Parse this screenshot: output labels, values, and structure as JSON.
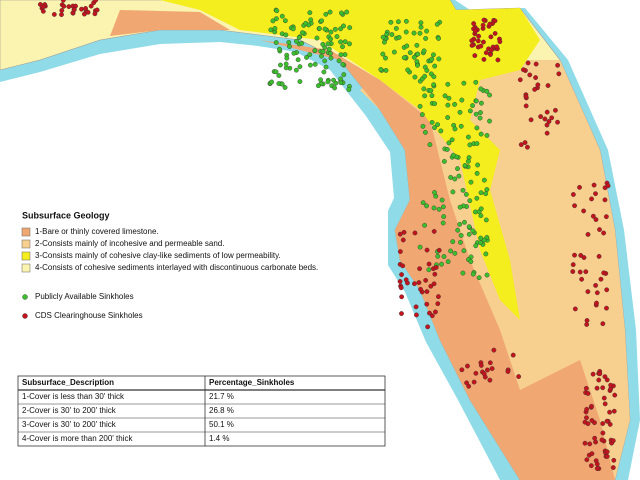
{
  "legend": {
    "title": "Subsurface Geology",
    "items": [
      {
        "label": "1-Bare or thinly covered limestone.",
        "color": "#f0a772"
      },
      {
        "label": "2-Consists mainly of incohesive and permeable sand.",
        "color": "#f7cf8f"
      },
      {
        "label": "3-Consists mainly of cohesive clay-like sediments of low permeability.",
        "color": "#f4ee1e"
      },
      {
        "label": "4-Consists of cohesive sediments interlayed with discontinuous carbonate beds.",
        "color": "#fbf3b0"
      }
    ],
    "points": [
      {
        "label": "Publicly Available Sinkholes",
        "color": "#3cbf2c"
      },
      {
        "label": "CDS Clearinghouse Sinkholes",
        "color": "#c3131c"
      }
    ]
  },
  "table": {
    "header": [
      "Subsurface_Description",
      "Percentage_Sinkholes"
    ],
    "rows": [
      [
        "1-Cover is less than 30' thick",
        "21.7 %"
      ],
      [
        "2-Cover is 30' to 200' thick",
        "26.8 %"
      ],
      [
        "3-Cover is 30' to 200' thick",
        "50.1 %"
      ],
      [
        "4-Cover is more than 200' thick",
        "1.4 %"
      ]
    ]
  }
}
